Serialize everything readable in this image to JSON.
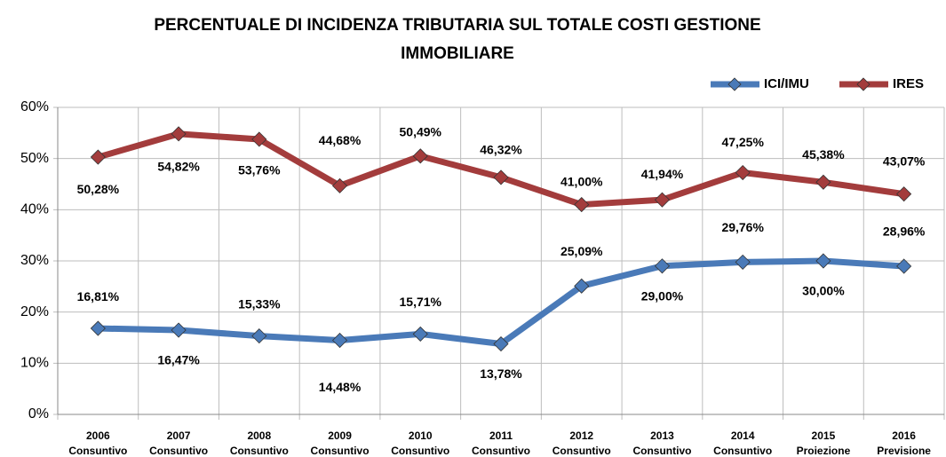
{
  "chart_data": {
    "type": "line",
    "title": [
      "PERCENTUALE DI INCIDENZA TRIBUTARIA SUL TOTALE COSTI GESTIONE",
      "IMMOBILIARE"
    ],
    "categories": [
      [
        "2006",
        "Consuntivo"
      ],
      [
        "2007",
        "Consuntivo"
      ],
      [
        "2008",
        "Consuntivo"
      ],
      [
        "2009",
        "Consuntivo"
      ],
      [
        "2010",
        "Consuntivo"
      ],
      [
        "2011",
        "Consuntivo"
      ],
      [
        "2012",
        "Consuntivo"
      ],
      [
        "2013",
        "Consuntivo"
      ],
      [
        "2014",
        "Consuntivo"
      ],
      [
        "2015",
        "Proiezione"
      ],
      [
        "2016",
        "Previsione"
      ]
    ],
    "series": [
      {
        "name": "ICI/IMU",
        "color": "#4a7ab8",
        "values": [
          16.81,
          16.47,
          15.33,
          14.48,
          15.71,
          13.78,
          25.09,
          29.0,
          29.76,
          30.0,
          28.96
        ],
        "value_labels": [
          "16,81%",
          "16,47%",
          "15,33%",
          "14,48%",
          "15,71%",
          "13,78%",
          "25,09%",
          "29,00%",
          "29,76%",
          "30,00%",
          "28,96%"
        ]
      },
      {
        "name": "IRES",
        "color": "#a33c3c",
        "values": [
          50.28,
          54.82,
          53.76,
          44.68,
          50.49,
          46.32,
          41.0,
          41.94,
          47.25,
          45.38,
          43.07
        ],
        "value_labels": [
          "50,28%",
          "54,82%",
          "53,76%",
          "44,68%",
          "50,49%",
          "46,32%",
          "41,00%",
          "41,94%",
          "47,25%",
          "45,38%",
          "43,07%"
        ]
      }
    ],
    "ylim": [
      0,
      60
    ],
    "yticks": [
      {
        "value": 0,
        "label": "0%"
      },
      {
        "value": 10,
        "label": "10%"
      },
      {
        "value": 20,
        "label": "20%"
      },
      {
        "value": 30,
        "label": "30%"
      },
      {
        "value": 40,
        "label": "40%"
      },
      {
        "value": 50,
        "label": "50%"
      },
      {
        "value": 60,
        "label": "60%"
      }
    ],
    "grid": true,
    "legend": "top-right"
  }
}
